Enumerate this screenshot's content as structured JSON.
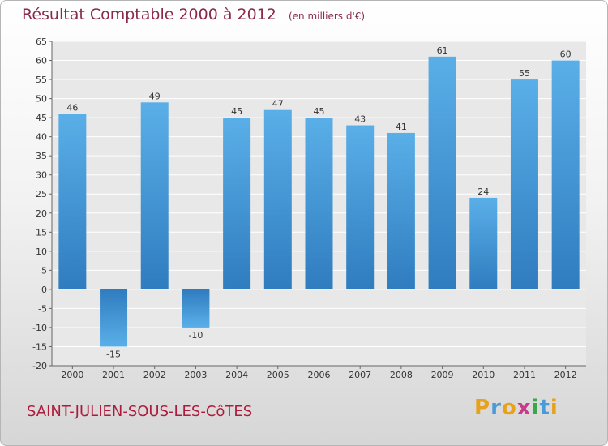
{
  "header": {
    "title": "Résultat Comptable 2000 à 2012",
    "unit": "(en milliers d'€)"
  },
  "footer": {
    "commune": "SAINT-JULIEN-SOUS-LES-CôTES",
    "logo_text": "Proxiti",
    "logo_letters": [
      {
        "ch": "P",
        "color": "#e8a21a"
      },
      {
        "ch": "r",
        "color": "#4a9ad8"
      },
      {
        "ch": "o",
        "color": "#e8a21a"
      },
      {
        "ch": "x",
        "color": "#c83a8a"
      },
      {
        "ch": "i",
        "color": "#3aa84a"
      },
      {
        "ch": "t",
        "color": "#4a9ad8"
      },
      {
        "ch": "i",
        "color": "#e8a21a"
      }
    ]
  },
  "colors": {
    "bar_dark": "#2f7cbf",
    "bar_light": "#5aafe8",
    "grid": "#ffffff",
    "title": "#8a2a4a",
    "commune": "#b01a3c"
  },
  "chart_data": {
    "type": "bar",
    "title": "Résultat Comptable 2000 à 2012",
    "subtitle": "(en milliers d'€)",
    "categories": [
      "2000",
      "2001",
      "2002",
      "2003",
      "2004",
      "2005",
      "2006",
      "2007",
      "2008",
      "2009",
      "2010",
      "2011",
      "2012"
    ],
    "values": [
      46,
      -15,
      49,
      -10,
      45,
      47,
      45,
      43,
      41,
      61,
      24,
      55,
      60
    ],
    "ylim": [
      -20,
      65
    ],
    "yticks": [
      -20,
      -15,
      -10,
      -5,
      0,
      5,
      10,
      15,
      20,
      25,
      30,
      35,
      40,
      45,
      50,
      55,
      60,
      65
    ],
    "grid": true,
    "legend": "none"
  }
}
